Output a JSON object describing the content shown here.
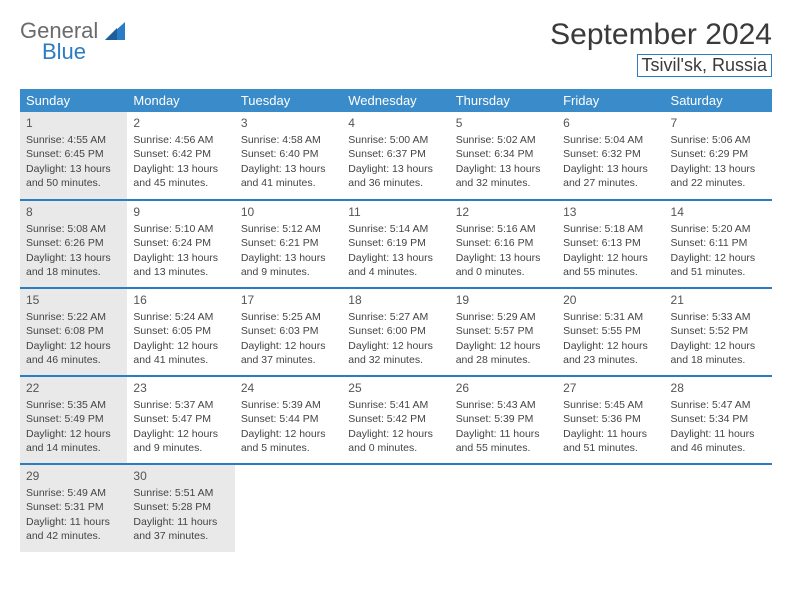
{
  "logo": {
    "text_general": "General",
    "text_blue": "Blue"
  },
  "header": {
    "month_title": "September 2024",
    "location": "Tsivil'sk, Russia"
  },
  "colors": {
    "header_bg": "#3a8bc9",
    "row_border": "#2b7cc4",
    "shade_bg": "#e9e9e9",
    "page_bg": "#ffffff",
    "text": "#444444"
  },
  "weekdays": [
    "Sunday",
    "Monday",
    "Tuesday",
    "Wednesday",
    "Thursday",
    "Friday",
    "Saturday"
  ],
  "days": [
    {
      "n": "1",
      "sunrise": "4:55 AM",
      "sunset": "6:45 PM",
      "daylight": "13 hours and 50 minutes."
    },
    {
      "n": "2",
      "sunrise": "4:56 AM",
      "sunset": "6:42 PM",
      "daylight": "13 hours and 45 minutes."
    },
    {
      "n": "3",
      "sunrise": "4:58 AM",
      "sunset": "6:40 PM",
      "daylight": "13 hours and 41 minutes."
    },
    {
      "n": "4",
      "sunrise": "5:00 AM",
      "sunset": "6:37 PM",
      "daylight": "13 hours and 36 minutes."
    },
    {
      "n": "5",
      "sunrise": "5:02 AM",
      "sunset": "6:34 PM",
      "daylight": "13 hours and 32 minutes."
    },
    {
      "n": "6",
      "sunrise": "5:04 AM",
      "sunset": "6:32 PM",
      "daylight": "13 hours and 27 minutes."
    },
    {
      "n": "7",
      "sunrise": "5:06 AM",
      "sunset": "6:29 PM",
      "daylight": "13 hours and 22 minutes."
    },
    {
      "n": "8",
      "sunrise": "5:08 AM",
      "sunset": "6:26 PM",
      "daylight": "13 hours and 18 minutes."
    },
    {
      "n": "9",
      "sunrise": "5:10 AM",
      "sunset": "6:24 PM",
      "daylight": "13 hours and 13 minutes."
    },
    {
      "n": "10",
      "sunrise": "5:12 AM",
      "sunset": "6:21 PM",
      "daylight": "13 hours and 9 minutes."
    },
    {
      "n": "11",
      "sunrise": "5:14 AM",
      "sunset": "6:19 PM",
      "daylight": "13 hours and 4 minutes."
    },
    {
      "n": "12",
      "sunrise": "5:16 AM",
      "sunset": "6:16 PM",
      "daylight": "13 hours and 0 minutes."
    },
    {
      "n": "13",
      "sunrise": "5:18 AM",
      "sunset": "6:13 PM",
      "daylight": "12 hours and 55 minutes."
    },
    {
      "n": "14",
      "sunrise": "5:20 AM",
      "sunset": "6:11 PM",
      "daylight": "12 hours and 51 minutes."
    },
    {
      "n": "15",
      "sunrise": "5:22 AM",
      "sunset": "6:08 PM",
      "daylight": "12 hours and 46 minutes."
    },
    {
      "n": "16",
      "sunrise": "5:24 AM",
      "sunset": "6:05 PM",
      "daylight": "12 hours and 41 minutes."
    },
    {
      "n": "17",
      "sunrise": "5:25 AM",
      "sunset": "6:03 PM",
      "daylight": "12 hours and 37 minutes."
    },
    {
      "n": "18",
      "sunrise": "5:27 AM",
      "sunset": "6:00 PM",
      "daylight": "12 hours and 32 minutes."
    },
    {
      "n": "19",
      "sunrise": "5:29 AM",
      "sunset": "5:57 PM",
      "daylight": "12 hours and 28 minutes."
    },
    {
      "n": "20",
      "sunrise": "5:31 AM",
      "sunset": "5:55 PM",
      "daylight": "12 hours and 23 minutes."
    },
    {
      "n": "21",
      "sunrise": "5:33 AM",
      "sunset": "5:52 PM",
      "daylight": "12 hours and 18 minutes."
    },
    {
      "n": "22",
      "sunrise": "5:35 AM",
      "sunset": "5:49 PM",
      "daylight": "12 hours and 14 minutes."
    },
    {
      "n": "23",
      "sunrise": "5:37 AM",
      "sunset": "5:47 PM",
      "daylight": "12 hours and 9 minutes."
    },
    {
      "n": "24",
      "sunrise": "5:39 AM",
      "sunset": "5:44 PM",
      "daylight": "12 hours and 5 minutes."
    },
    {
      "n": "25",
      "sunrise": "5:41 AM",
      "sunset": "5:42 PM",
      "daylight": "12 hours and 0 minutes."
    },
    {
      "n": "26",
      "sunrise": "5:43 AM",
      "sunset": "5:39 PM",
      "daylight": "11 hours and 55 minutes."
    },
    {
      "n": "27",
      "sunrise": "5:45 AM",
      "sunset": "5:36 PM",
      "daylight": "11 hours and 51 minutes."
    },
    {
      "n": "28",
      "sunrise": "5:47 AM",
      "sunset": "5:34 PM",
      "daylight": "11 hours and 46 minutes."
    },
    {
      "n": "29",
      "sunrise": "5:49 AM",
      "sunset": "5:31 PM",
      "daylight": "11 hours and 42 minutes."
    },
    {
      "n": "30",
      "sunrise": "5:51 AM",
      "sunset": "5:28 PM",
      "daylight": "11 hours and 37 minutes."
    }
  ],
  "labels": {
    "sunrise_prefix": "Sunrise: ",
    "sunset_prefix": "Sunset: ",
    "daylight_prefix": "Daylight: "
  },
  "layout": {
    "start_weekday_index": 0,
    "total_days": 30,
    "weeks": 5,
    "shaded_days": [
      1,
      8,
      15,
      22,
      29,
      30
    ]
  }
}
